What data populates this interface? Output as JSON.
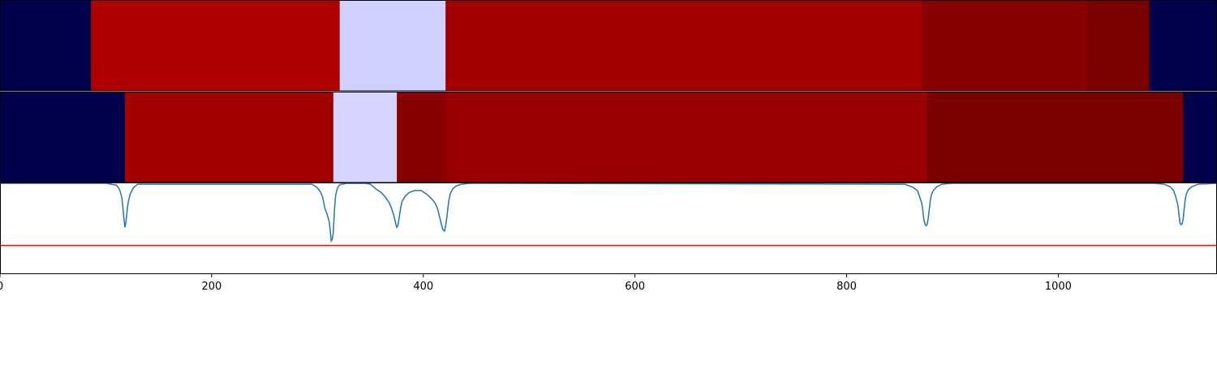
{
  "chart_data": {
    "type": "heatmap",
    "title": "",
    "xlabel": "",
    "ylabel": "",
    "xlim": [
      0,
      1150
    ],
    "x_ticks": [
      0,
      200,
      400,
      600,
      800,
      1000
    ],
    "x_tick_labels": [
      "0",
      "200",
      "400",
      "600",
      "800",
      "1000"
    ],
    "grid": false,
    "heatmap_rows": [
      {
        "segments": [
          {
            "start": 0,
            "end": 86,
            "color": "#00004c"
          },
          {
            "start": 86,
            "end": 321,
            "color": "#b00000"
          },
          {
            "start": 321,
            "end": 421,
            "color": "#d1d1ff"
          },
          {
            "start": 421,
            "end": 871,
            "color": "#a30000"
          },
          {
            "start": 871,
            "end": 1027,
            "color": "#8a0000"
          },
          {
            "start": 1027,
            "end": 1086,
            "color": "#7a0000"
          },
          {
            "start": 1086,
            "end": 1150,
            "color": "#00004c"
          }
        ]
      },
      {
        "segments": [
          {
            "start": 0,
            "end": 118,
            "color": "#00004c"
          },
          {
            "start": 118,
            "end": 315,
            "color": "#a30000"
          },
          {
            "start": 315,
            "end": 375,
            "color": "#d5d5ff"
          },
          {
            "start": 375,
            "end": 421,
            "color": "#8a0000"
          },
          {
            "start": 421,
            "end": 876,
            "color": "#990000"
          },
          {
            "start": 876,
            "end": 1118,
            "color": "#7a0000"
          },
          {
            "start": 1118,
            "end": 1150,
            "color": "#00004c"
          }
        ]
      }
    ],
    "line_panel": {
      "ylim": [
        0,
        1
      ],
      "series": [
        {
          "color": "#1f77b4",
          "x": [
            0,
            100,
            110,
            113,
            115,
            116,
            117,
            118,
            119,
            120,
            121,
            123,
            126,
            130,
            295,
            300,
            303,
            305,
            306,
            307,
            309,
            311,
            312,
            313,
            314,
            315,
            316,
            317,
            318,
            319,
            320,
            321,
            322,
            324,
            327,
            331,
            336,
            345,
            350,
            352,
            356,
            360,
            364,
            368,
            370,
            372,
            373,
            374,
            375,
            376,
            377,
            378,
            379,
            380,
            383,
            387,
            392,
            398,
            402,
            406,
            410,
            412,
            414,
            415,
            416,
            417,
            418,
            419,
            420,
            421,
            422,
            423,
            424,
            425,
            426,
            428,
            431,
            436,
            445,
            460,
            855,
            862,
            867,
            869,
            871,
            872,
            873,
            874,
            875,
            876,
            877,
            878,
            879,
            880,
            882,
            885,
            890,
            900,
            1090,
            1100,
            1106,
            1109,
            1111,
            1113,
            1114,
            1115,
            1116,
            1117,
            1118,
            1119,
            1120,
            1121,
            1123,
            1126,
            1132,
            1150
          ],
          "y": [
            1,
            1,
            0.98,
            0.93,
            0.85,
            0.75,
            0.62,
            0.51,
            0.57,
            0.68,
            0.78,
            0.88,
            0.95,
            0.99,
            0.99,
            0.95,
            0.9,
            0.84,
            0.78,
            0.72,
            0.66,
            0.58,
            0.48,
            0.36,
            0.38,
            0.46,
            0.7,
            0.85,
            0.91,
            0.95,
            0.97,
            0.98,
            0.99,
            0.99,
            1,
            1,
            1,
            1,
            0.99,
            0.97,
            0.93,
            0.9,
            0.85,
            0.78,
            0.72,
            0.65,
            0.6,
            0.55,
            0.51,
            0.53,
            0.6,
            0.68,
            0.75,
            0.8,
            0.86,
            0.9,
            0.92,
            0.92,
            0.89,
            0.85,
            0.8,
            0.76,
            0.7,
            0.64,
            0.6,
            0.55,
            0.5,
            0.48,
            0.47,
            0.52,
            0.6,
            0.7,
            0.8,
            0.86,
            0.9,
            0.94,
            0.97,
            0.99,
            1,
            1,
            0.99,
            0.96,
            0.92,
            0.85,
            0.78,
            0.7,
            0.6,
            0.55,
            0.53,
            0.54,
            0.6,
            0.7,
            0.8,
            0.87,
            0.92,
            0.96,
            0.99,
            1,
            1,
            0.99,
            0.96,
            0.92,
            0.85,
            0.76,
            0.66,
            0.56,
            0.54,
            0.55,
            0.6,
            0.72,
            0.82,
            0.88,
            0.93,
            0.96,
            0.99,
            1
          ]
        }
      ],
      "threshold": {
        "y": 0.31,
        "color": "#ff0000"
      }
    }
  }
}
